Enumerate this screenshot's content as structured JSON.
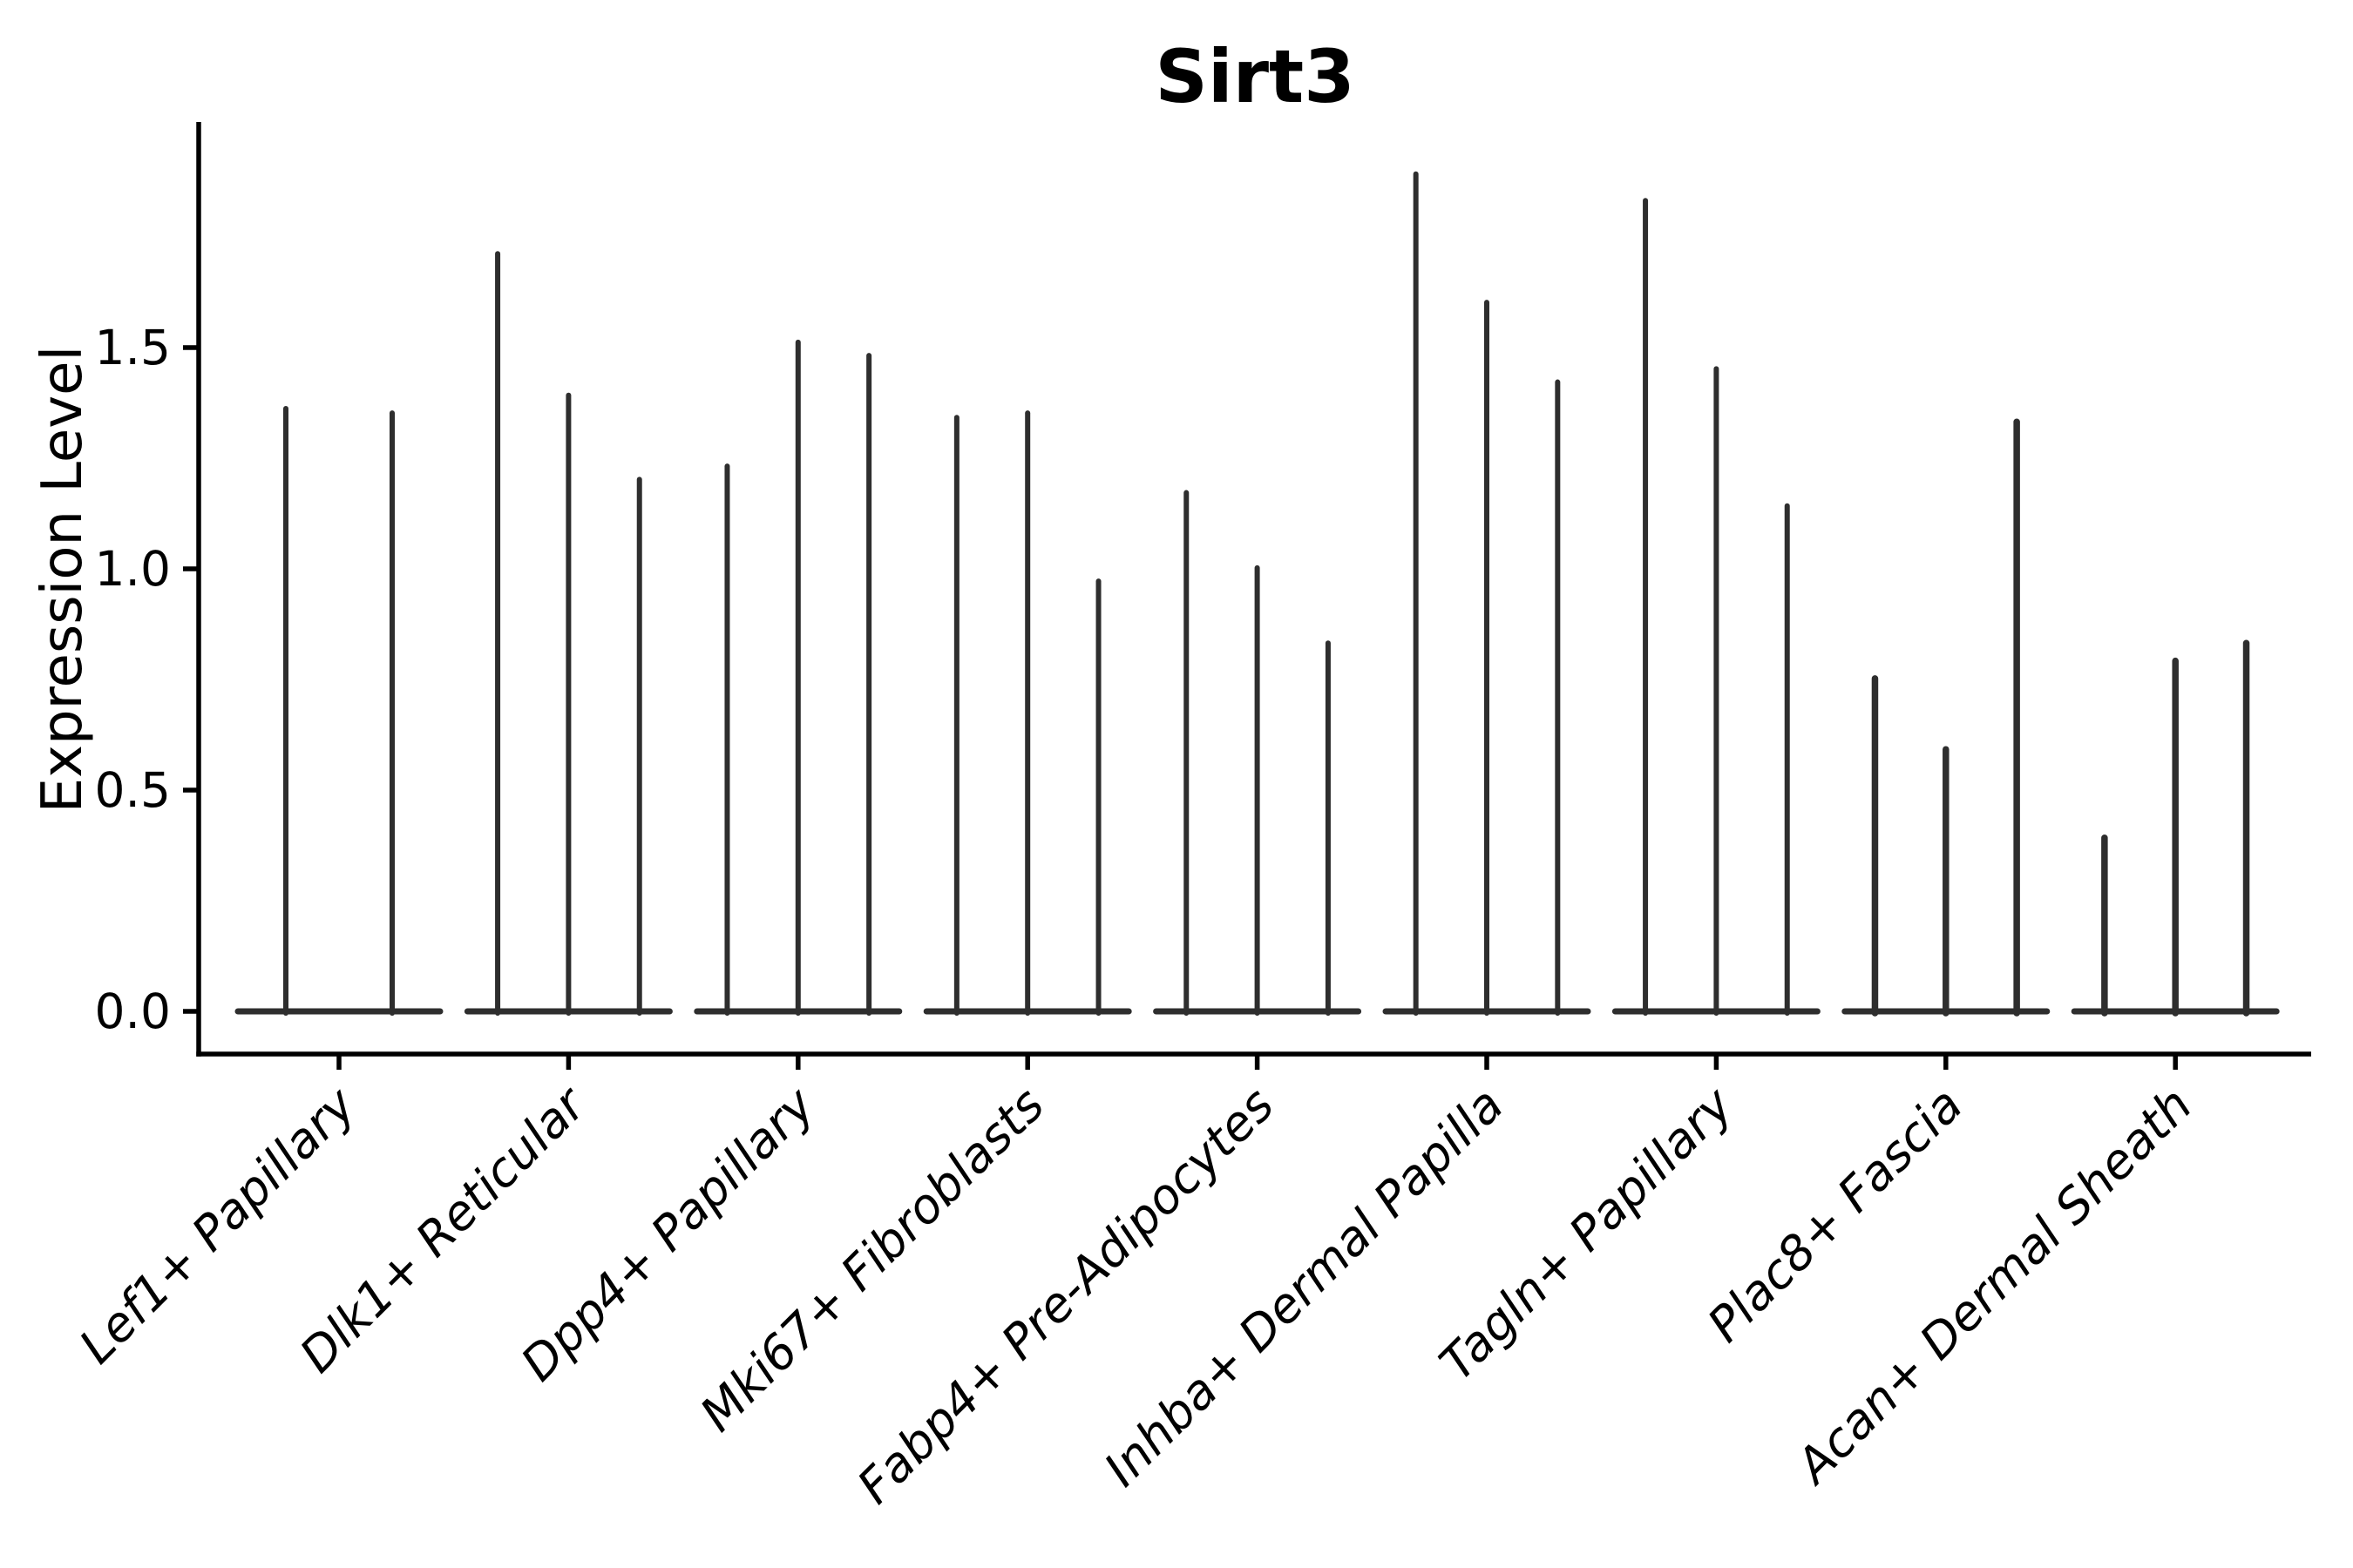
{
  "figure": {
    "title": "Sirt3",
    "background_color": "#ffffff",
    "axis_color": "#000000",
    "violin_color": "#2e2e2e"
  },
  "chart_data": {
    "type": "violin",
    "title": "Sirt3",
    "ylabel": "Expression Level",
    "xlabel": "",
    "ylim": [
      -0.1,
      2.0
    ],
    "yticks": [
      {
        "label": "0.0",
        "value": 0.0
      },
      {
        "label": "0.5",
        "value": 0.5
      },
      {
        "label": "1.0",
        "value": 1.0
      },
      {
        "label": "1.5",
        "value": 1.5
      }
    ],
    "grid": false,
    "legend_position": "none",
    "xtick_label_rotation_deg": 45,
    "violin_shape_note": "near-zero-width vertical spikes rising from a flat base at expression level 0",
    "categories": [
      "Lef1+ Papillary",
      "Dlk1+ Reticular",
      "Dpp4+ Papillary",
      "Mki67+ Fibroblasts",
      "Fabp4+ Pre-Adipocytes",
      "Inhba+ Dermal Papilla",
      "Tagln+ Papillary",
      "Plac8+ Fascia",
      "Acan+ Dermal Sheath"
    ],
    "series": [
      {
        "category": "Lef1+ Papillary",
        "violin_peaks": [
          1.37,
          1.36
        ]
      },
      {
        "category": "Dlk1+ Reticular",
        "violin_peaks": [
          1.72,
          1.4,
          1.21
        ]
      },
      {
        "category": "Dpp4+ Papillary",
        "violin_peaks": [
          1.24,
          1.52,
          1.49
        ]
      },
      {
        "category": "Mki67+ Fibroblasts",
        "violin_peaks": [
          1.35,
          1.36,
          0.98
        ]
      },
      {
        "category": "Fabp4+ Pre-Adipocytes",
        "violin_peaks": [
          1.18,
          1.01,
          0.84
        ]
      },
      {
        "category": "Inhba+ Dermal Papilla",
        "violin_peaks": [
          1.9,
          1.61,
          1.43
        ]
      },
      {
        "category": "Tagln+ Papillary",
        "violin_peaks": [
          1.84,
          1.46,
          1.15
        ]
      },
      {
        "category": "Plac8+ Fascia",
        "violin_peaks": [
          0.76,
          0.6,
          1.34
        ]
      },
      {
        "category": "Acan+ Dermal Sheath",
        "violin_peaks": [
          0.4,
          0.8,
          0.84
        ]
      }
    ]
  }
}
